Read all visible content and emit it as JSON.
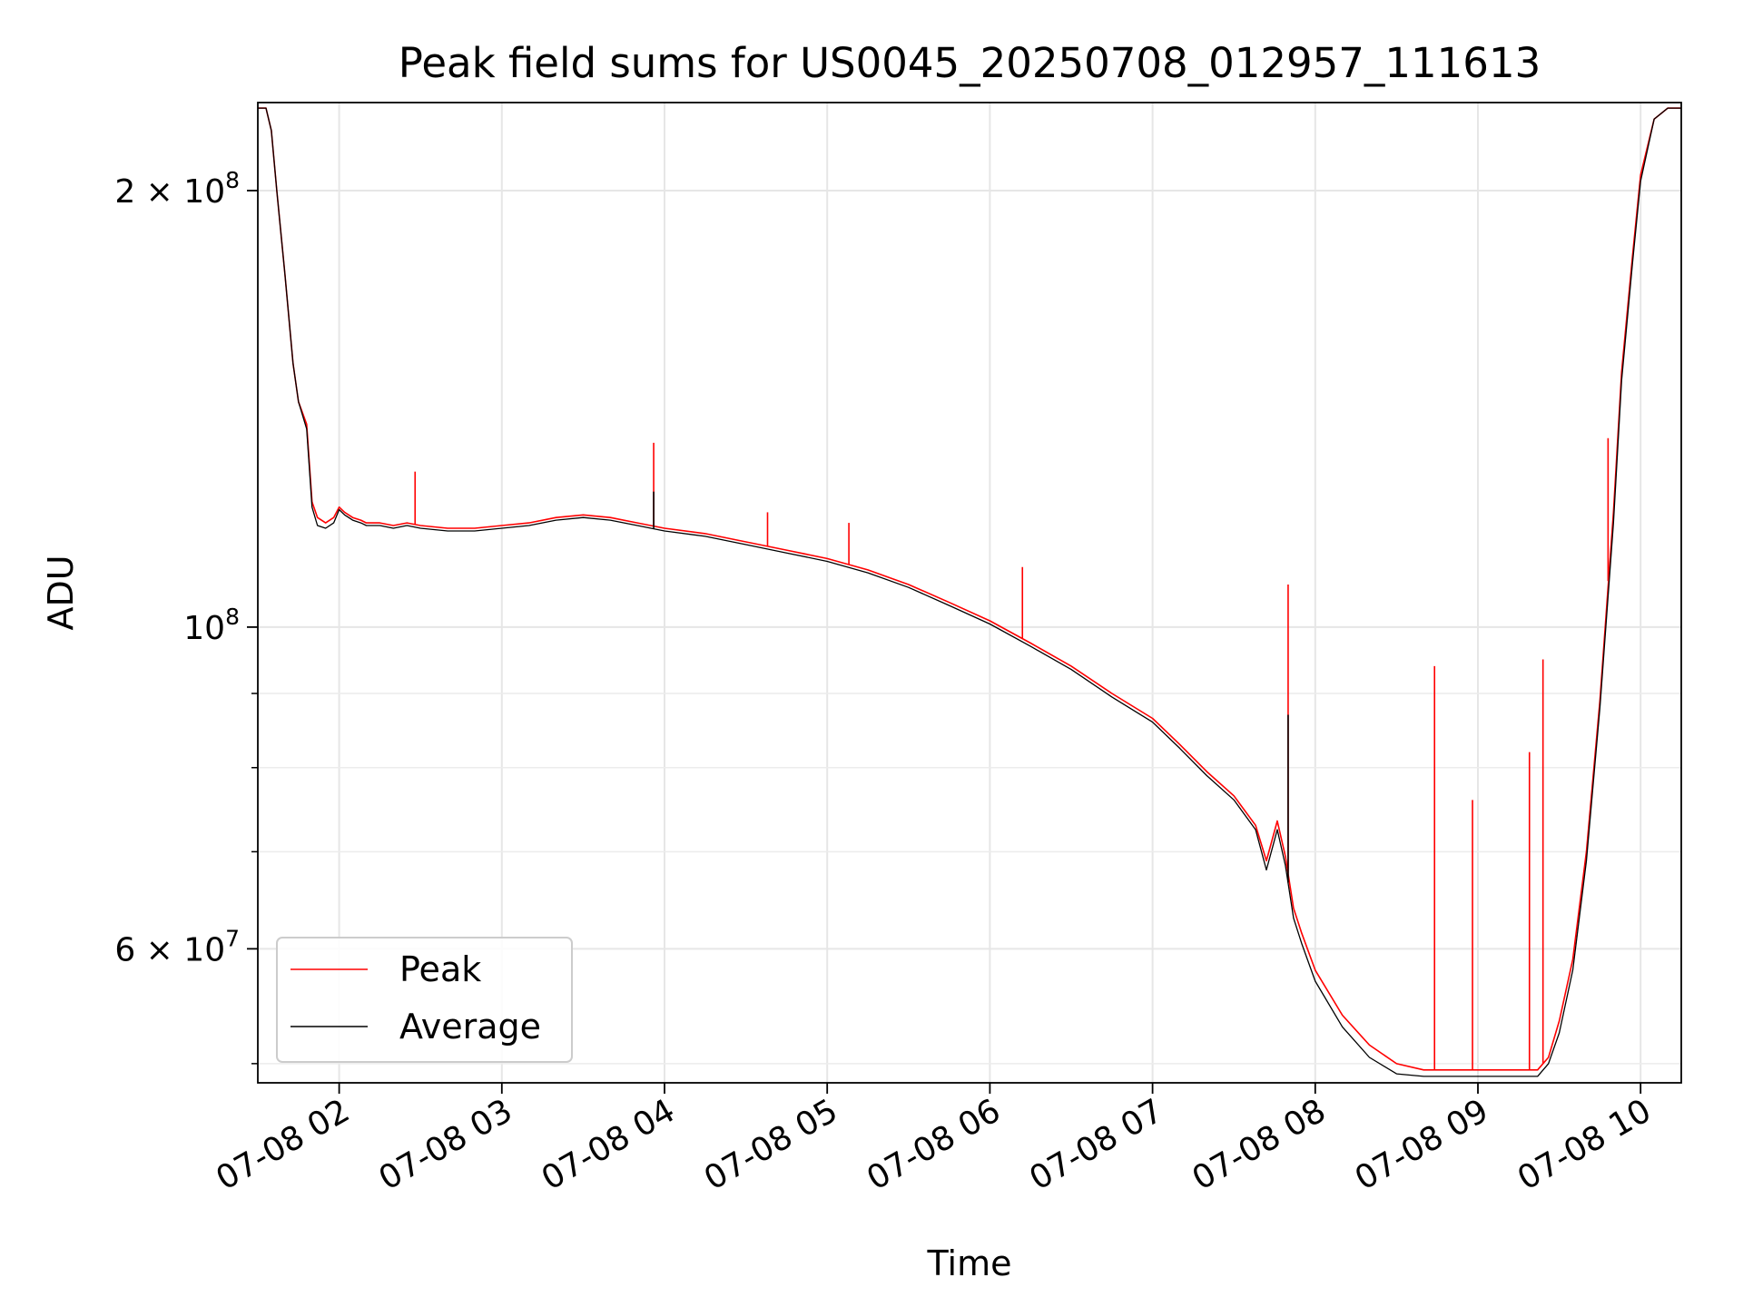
{
  "chart_data": {
    "type": "line",
    "title": "Peak field sums for US0045_20250708_012957_111613",
    "xlabel": "Time",
    "ylabel": "ADU",
    "yscale": "log",
    "grid": true,
    "legend_position": "lower-left",
    "xlim": [
      "07-08 01:30",
      "07-08 10:15"
    ],
    "ylim": [
      48500000,
      230000000
    ],
    "x_ticks": [
      "07-08 02",
      "07-08 03",
      "07-08 04",
      "07-08 05",
      "07-08 06",
      "07-08 07",
      "07-08 08",
      "07-08 09",
      "07-08 10"
    ],
    "y_ticks": [
      {
        "value": 200000000,
        "base": "2 × 10",
        "exp": "8"
      },
      {
        "value": 100000000,
        "base": "10",
        "exp": "8"
      },
      {
        "value": 60000000,
        "base": "6 × 10",
        "exp": "7"
      }
    ],
    "y_minor_ticks": [
      50000000,
      70000000,
      80000000,
      90000000
    ],
    "series": [
      {
        "name": "Peak",
        "color": "#ff0000",
        "x": [
          "07-08 01:30",
          "07-08 01:33",
          "07-08 01:35",
          "07-08 01:37",
          "07-08 01:40",
          "07-08 01:43",
          "07-08 01:45",
          "07-08 01:48",
          "07-08 01:50",
          "07-08 01:52",
          "07-08 01:55",
          "07-08 01:58",
          "07-08 02:00",
          "07-08 02:02",
          "07-08 02:05",
          "07-08 02:08",
          "07-08 02:10",
          "07-08 02:15",
          "07-08 02:20",
          "07-08 02:25",
          "07-08 02:30",
          "07-08 02:40",
          "07-08 02:50",
          "07-08 03:00",
          "07-08 03:10",
          "07-08 03:20",
          "07-08 03:30",
          "07-08 03:40",
          "07-08 03:50",
          "07-08 04:00",
          "07-08 04:15",
          "07-08 04:30",
          "07-08 04:45",
          "07-08 05:00",
          "07-08 05:15",
          "07-08 05:30",
          "07-08 05:45",
          "07-08 06:00",
          "07-08 06:15",
          "07-08 06:30",
          "07-08 06:45",
          "07-08 07:00",
          "07-08 07:10",
          "07-08 07:20",
          "07-08 07:30",
          "07-08 07:38",
          "07-08 07:42",
          "07-08 07:46",
          "07-08 07:49",
          "07-08 07:52",
          "07-08 07:55",
          "07-08 08:00",
          "07-08 08:10",
          "07-08 08:20",
          "07-08 08:30",
          "07-08 08:40",
          "07-08 08:50",
          "07-08 09:00",
          "07-08 09:10",
          "07-08 09:18",
          "07-08 09:22",
          "07-08 09:26",
          "07-08 09:30",
          "07-08 09:35",
          "07-08 09:40",
          "07-08 09:45",
          "07-08 09:50",
          "07-08 09:53",
          "07-08 09:57",
          "07-08 10:00",
          "07-08 10:05",
          "07-08 10:10",
          "07-08 10:15"
        ],
        "y": [
          228000000,
          228000000,
          220000000,
          200000000,
          175000000,
          152000000,
          143000000,
          138000000,
          122000000,
          119000000,
          118000000,
          119000000,
          121000000,
          120000000,
          119000000,
          118500000,
          118000000,
          118000000,
          117500000,
          118000000,
          117500000,
          117000000,
          117000000,
          117500000,
          118000000,
          119000000,
          119500000,
          119000000,
          118000000,
          117000000,
          116000000,
          114500000,
          113000000,
          111500000,
          109500000,
          107000000,
          104000000,
          101000000,
          97500000,
          94000000,
          90000000,
          86500000,
          83000000,
          79500000,
          76500000,
          73000000,
          69000000,
          73500000,
          69500000,
          64000000,
          61500000,
          58000000,
          54000000,
          51500000,
          50000000,
          49500000,
          49500000,
          49500000,
          49500000,
          49500000,
          49500000,
          50500000,
          53500000,
          59000000,
          70000000,
          89000000,
          120000000,
          150000000,
          180000000,
          205000000,
          224000000,
          228000000,
          228000000
        ]
      },
      {
        "name": "Average",
        "color": "#000000",
        "x": [
          "07-08 01:30",
          "07-08 01:33",
          "07-08 01:35",
          "07-08 01:37",
          "07-08 01:40",
          "07-08 01:43",
          "07-08 01:45",
          "07-08 01:48",
          "07-08 01:50",
          "07-08 01:52",
          "07-08 01:55",
          "07-08 01:58",
          "07-08 02:00",
          "07-08 02:02",
          "07-08 02:05",
          "07-08 02:08",
          "07-08 02:10",
          "07-08 02:15",
          "07-08 02:20",
          "07-08 02:25",
          "07-08 02:30",
          "07-08 02:40",
          "07-08 02:50",
          "07-08 03:00",
          "07-08 03:10",
          "07-08 03:20",
          "07-08 03:30",
          "07-08 03:40",
          "07-08 03:50",
          "07-08 04:00",
          "07-08 04:15",
          "07-08 04:30",
          "07-08 04:45",
          "07-08 05:00",
          "07-08 05:15",
          "07-08 05:30",
          "07-08 05:45",
          "07-08 06:00",
          "07-08 06:15",
          "07-08 06:30",
          "07-08 06:45",
          "07-08 07:00",
          "07-08 07:10",
          "07-08 07:20",
          "07-08 07:30",
          "07-08 07:38",
          "07-08 07:42",
          "07-08 07:46",
          "07-08 07:49",
          "07-08 07:52",
          "07-08 07:55",
          "07-08 08:00",
          "07-08 08:10",
          "07-08 08:20",
          "07-08 08:30",
          "07-08 08:40",
          "07-08 08:50",
          "07-08 09:00",
          "07-08 09:10",
          "07-08 09:18",
          "07-08 09:22",
          "07-08 09:26",
          "07-08 09:30",
          "07-08 09:35",
          "07-08 09:40",
          "07-08 09:45",
          "07-08 09:50",
          "07-08 09:53",
          "07-08 09:57",
          "07-08 10:00",
          "07-08 10:05",
          "07-08 10:10",
          "07-08 10:15"
        ],
        "y": [
          228000000,
          228000000,
          220000000,
          200000000,
          175000000,
          152000000,
          143000000,
          137000000,
          121000000,
          117500000,
          117000000,
          118000000,
          120500000,
          119500000,
          118500000,
          118000000,
          117500000,
          117500000,
          117000000,
          117500000,
          117000000,
          116500000,
          116500000,
          117000000,
          117500000,
          118500000,
          119000000,
          118500000,
          117500000,
          116500000,
          115500000,
          114000000,
          112500000,
          111000000,
          109000000,
          106500000,
          103500000,
          100500000,
          97000000,
          93500000,
          89500000,
          86000000,
          82500000,
          79000000,
          76000000,
          72500000,
          68000000,
          72500000,
          68500000,
          63000000,
          60500000,
          57000000,
          53000000,
          50500000,
          49200000,
          49000000,
          49000000,
          49000000,
          49000000,
          49000000,
          49000000,
          50000000,
          52500000,
          58000000,
          69000000,
          88000000,
          118000000,
          148000000,
          178000000,
          203000000,
          224000000,
          228000000,
          228000000
        ]
      }
    ],
    "spikes": [
      {
        "series": "Peak",
        "x": "07-08 02:28",
        "y": 128000000
      },
      {
        "series": "Peak",
        "x": "07-08 03:56",
        "y": 134000000
      },
      {
        "series": "Average",
        "x": "07-08 03:56",
        "y": 124000000
      },
      {
        "series": "Peak",
        "x": "07-08 04:38",
        "y": 120000000
      },
      {
        "series": "Peak",
        "x": "07-08 05:08",
        "y": 118000000
      },
      {
        "series": "Peak",
        "x": "07-08 06:12",
        "y": 110000000
      },
      {
        "series": "Peak",
        "x": "07-08 07:50",
        "y": 107000000
      },
      {
        "series": "Average",
        "x": "07-08 07:50",
        "y": 87000000
      },
      {
        "series": "Peak",
        "x": "07-08 08:44",
        "y": 94000000
      },
      {
        "series": "Peak",
        "x": "07-08 08:58",
        "y": 76000000
      },
      {
        "series": "Peak",
        "x": "07-08 09:19",
        "y": 82000000
      },
      {
        "series": "Peak",
        "x": "07-08 09:24",
        "y": 95000000
      },
      {
        "series": "Peak",
        "x": "07-08 09:48",
        "y": 135000000
      }
    ]
  }
}
